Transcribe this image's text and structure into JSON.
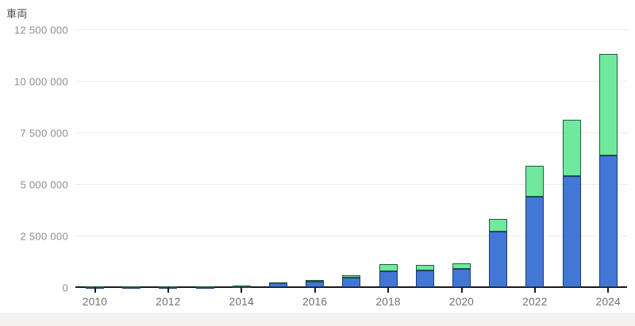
{
  "page": {
    "background_color": "#ffffff",
    "footer_strip_color": "#f3f2f0"
  },
  "axis": {
    "title": "車両",
    "grid_color": "#ececec",
    "axis_line_color": "#1a1a1a",
    "y_label_color": "#8c8c8c",
    "x_label_color": "#6e6e6e"
  },
  "chart_data": {
    "type": "bar",
    "stacked": true,
    "title": "車両",
    "xlabel": "",
    "ylabel": "車両",
    "ylim": [
      0,
      12500000
    ],
    "grid": "horizontal",
    "legend_position": "none",
    "categories": [
      "2010",
      "2011",
      "2012",
      "2013",
      "2014",
      "2015",
      "2016",
      "2017",
      "2018",
      "2019",
      "2020",
      "2021",
      "2022",
      "2023",
      "2024"
    ],
    "series": [
      {
        "name": "blue-lower-segment",
        "color": "#4377d6",
        "stroke": "#1a3e66",
        "values": [
          5000,
          6000,
          10000,
          15000,
          50000,
          190000,
          260000,
          470000,
          780000,
          820000,
          880000,
          2700000,
          4400000,
          5400000,
          6400000
        ]
      },
      {
        "name": "green-upper-segment",
        "color": "#70e89d",
        "stroke": "#1e5b3d",
        "values": [
          1000,
          1000,
          2000,
          4000,
          25000,
          60000,
          90000,
          120000,
          320000,
          250000,
          290000,
          600000,
          1500000,
          2700000,
          4900000
        ]
      }
    ],
    "totals": [
      6000,
      7000,
      12000,
      19000,
      75000,
      250000,
      350000,
      590000,
      1100000,
      1070000,
      1170000,
      3300000,
      5900000,
      8100000,
      11300000
    ],
    "y_ticks": [
      {
        "value": 0,
        "label": "0"
      },
      {
        "value": 2500000,
        "label": "2 500 000"
      },
      {
        "value": 5000000,
        "label": "5 000 000"
      },
      {
        "value": 7500000,
        "label": "7 500 000"
      },
      {
        "value": 10000000,
        "label": "10 000 000"
      },
      {
        "value": 12500000,
        "label": "12 500 000"
      }
    ],
    "x_tick_labels": [
      "2010",
      "2012",
      "2014",
      "2016",
      "2018",
      "2020",
      "2022",
      "2024"
    ]
  }
}
